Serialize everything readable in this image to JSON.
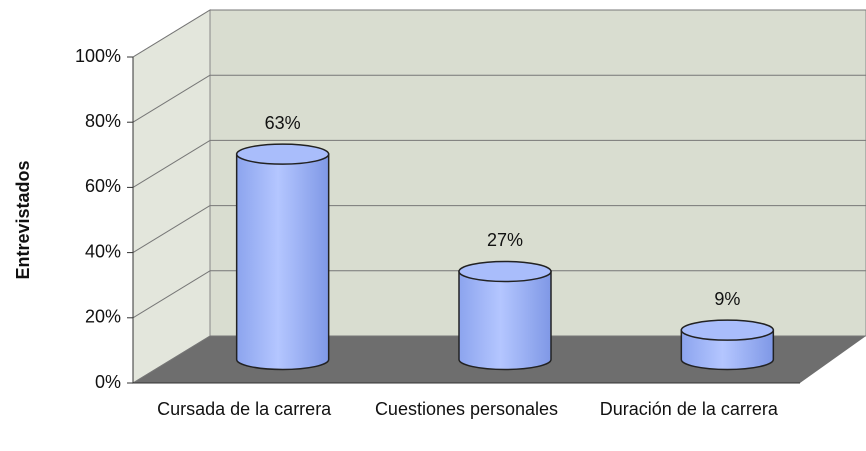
{
  "chart_data": {
    "type": "bar3d",
    "ylabel": "Entrevistados",
    "categories": [
      "Cursada de la carrera",
      "Cuestiones personales",
      "Duración de la carrera"
    ],
    "values": [
      63,
      27,
      9
    ],
    "value_labels": [
      "63%",
      "27%",
      "9%"
    ],
    "color": "#9bb2f5",
    "ylim": [
      0,
      100
    ],
    "yticks": [
      {
        "value": 0,
        "label": "0%"
      },
      {
        "value": 20,
        "label": "20%"
      },
      {
        "value": 40,
        "label": "40%"
      },
      {
        "value": 60,
        "label": "60%"
      },
      {
        "value": 80,
        "label": "80%"
      },
      {
        "value": 100,
        "label": "100%"
      }
    ],
    "grid": true
  }
}
